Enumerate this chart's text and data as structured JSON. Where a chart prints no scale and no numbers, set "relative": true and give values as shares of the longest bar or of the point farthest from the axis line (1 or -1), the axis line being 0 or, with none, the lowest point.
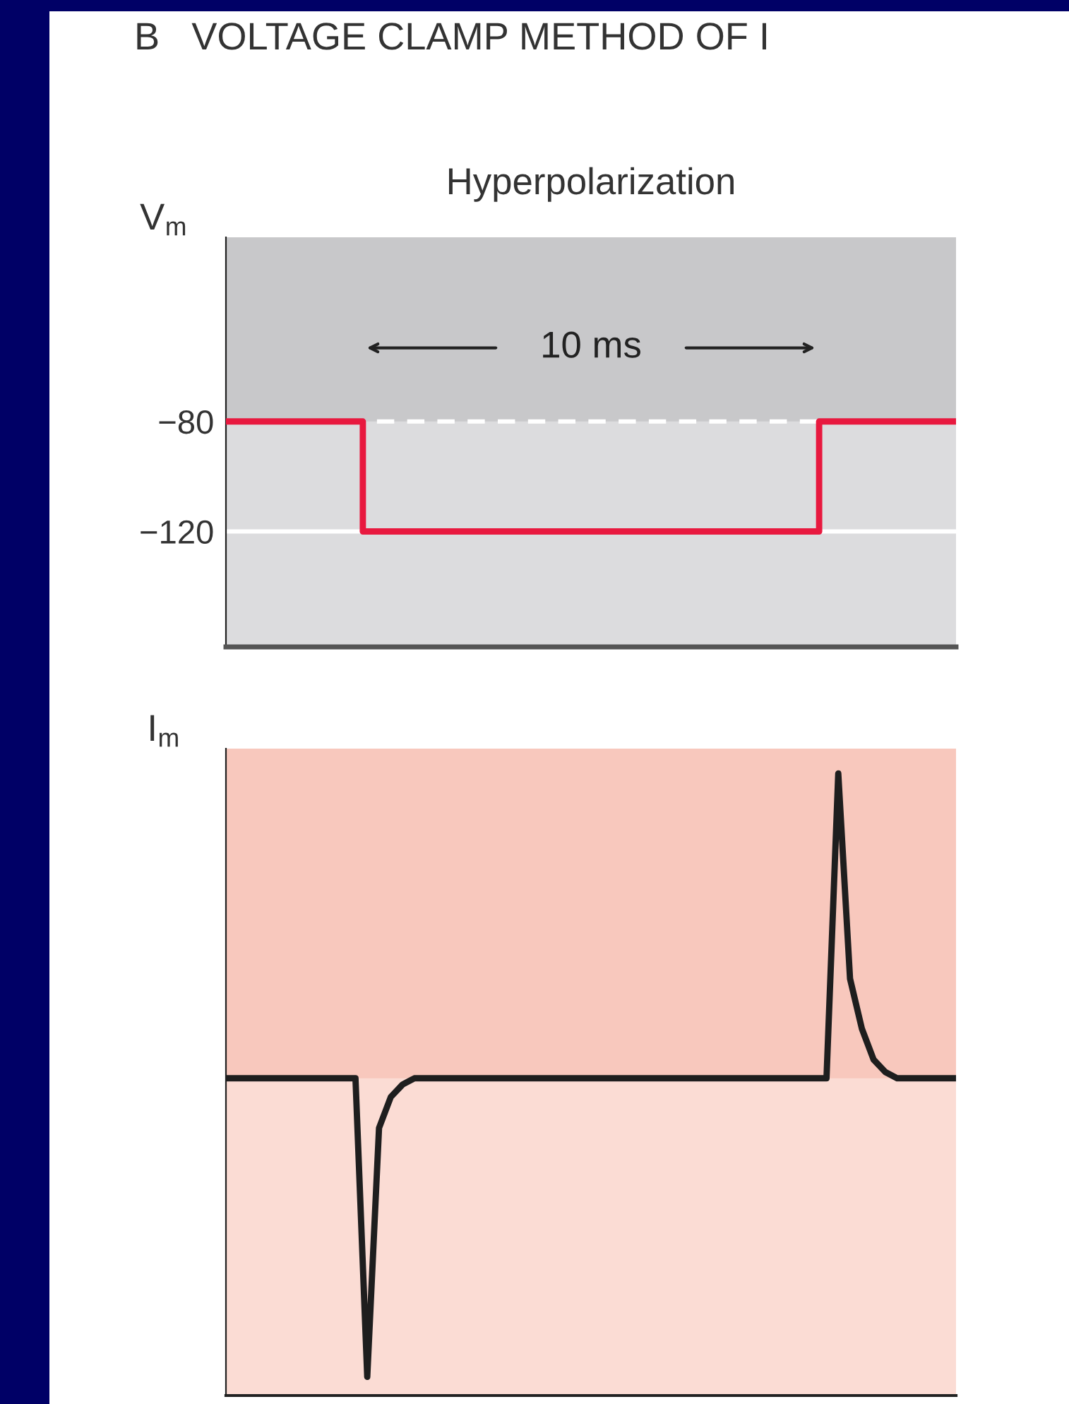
{
  "chart_data": [
    {
      "type": "step",
      "title": "Hyperpolarization",
      "ylabel": "V$_{m}$",
      "annotations": [
        "B   VOLTAGE CLAMP METHOD OF I",
        "10 ms"
      ],
      "categories": [
        null,
        null,
        null,
        null,
        null,
        null,
        null,
        null,
        null,
        null,
        null,
        null,
        null,
        null,
        null,
        null,
        null
      ],
      "series": [
        {
          "color": "#e8193f",
          "values": [
            -80,
            -80,
            -80,
            -120,
            -120,
            -120,
            -120,
            -120,
            -120,
            -120,
            -120,
            -120,
            -120,
            -80,
            -80,
            -80,
            -80
          ]
        }
      ],
      "ylim": [
        -162,
        -13
      ],
      "yticks": [
        {
          "value": -80,
          "label": "−80"
        },
        {
          "value": -120,
          "label": "−120"
        }
      ],
      "tick_labels": "y",
      "grid": false,
      "ref_lines": [
        {
          "axis": "y",
          "value": -80,
          "color": "#ffffff",
          "line_style": "dashed"
        },
        {
          "axis": "y",
          "value": -120,
          "color": "#ffffff",
          "line_style": "solid"
        }
      ],
      "bands": [
        {
          "axis": "y",
          "from": -80,
          "to": -13,
          "color": "#c8c8ca"
        }
      ]
    },
    {
      "type": "line",
      "ylabel": "I$_{m}$",
      "relative": true,
      "categories": [
        null,
        null,
        null,
        null,
        null,
        null,
        null,
        null,
        null,
        null,
        null,
        null,
        null,
        null,
        null,
        null,
        null,
        null,
        null,
        null,
        null,
        null,
        null,
        null,
        null,
        null,
        null,
        null,
        null,
        null,
        null,
        null,
        null,
        null,
        null,
        null,
        null,
        null,
        null,
        null,
        null,
        null,
        null,
        null,
        null,
        null,
        null,
        null,
        null,
        null,
        null,
        null,
        null,
        null,
        null,
        null,
        null,
        null,
        null,
        null,
        null,
        null,
        null
      ],
      "series": [
        {
          "color": "#1e1e1e",
          "values": [
            0.51,
            0.51,
            0.51,
            0.51,
            0.51,
            0.51,
            0.51,
            0.51,
            0.51,
            0.51,
            0.51,
            0.51,
            0.03,
            0.43,
            0.48,
            0.5,
            0.51,
            0.51,
            0.51,
            0.51,
            0.51,
            0.51,
            0.51,
            0.51,
            0.51,
            0.51,
            0.51,
            0.51,
            0.51,
            0.51,
            0.51,
            0.51,
            0.51,
            0.51,
            0.51,
            0.51,
            0.51,
            0.51,
            0.51,
            0.51,
            0.51,
            0.51,
            0.51,
            0.51,
            0.51,
            0.51,
            0.51,
            0.51,
            0.51,
            0.51,
            0.51,
            0.51,
            1.0,
            0.67,
            0.59,
            0.54,
            0.52,
            0.51,
            0.51,
            0.51,
            0.51,
            0.51,
            0.51
          ]
        }
      ],
      "tick_labels": false,
      "grid": false,
      "bands": [
        {
          "axis": "y",
          "from": 0.51,
          "to": 1.04,
          "color": "#f8c8bd"
        }
      ]
    }
  ]
}
